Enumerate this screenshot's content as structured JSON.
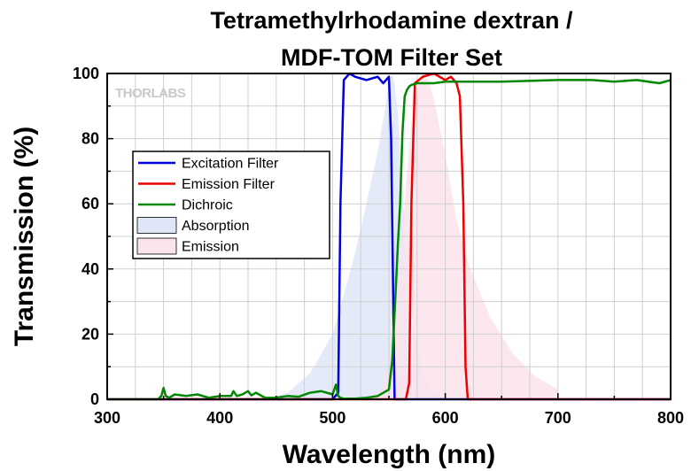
{
  "chart_data": {
    "type": "line",
    "title": [
      "Tetramethylrhodamine dextran /",
      "MDF-TOM Filter Set"
    ],
    "xlabel": "Wavelength (nm)",
    "ylabel": "Transmission (%)",
    "xlim": [
      300,
      800
    ],
    "ylim": [
      0,
      100
    ],
    "xticks": [
      "300",
      "400",
      "500",
      "600",
      "700",
      "800"
    ],
    "yticks": [
      "0",
      "20",
      "40",
      "60",
      "80",
      "100"
    ],
    "grid": true,
    "legend_position": "upper-left",
    "logo_text": "THORLABS",
    "series": [
      {
        "name": "Excitation Filter",
        "kind": "line",
        "color": "#0000dd",
        "x": [
          300,
          500,
          505,
          507,
          510,
          515,
          520,
          530,
          540,
          545,
          550,
          552,
          555,
          560,
          800
        ],
        "y": [
          0,
          0,
          2,
          60,
          98,
          100,
          99,
          98,
          99,
          97,
          99,
          80,
          0,
          0,
          0
        ]
      },
      {
        "name": "Emission Filter",
        "kind": "line",
        "color": "#ee0000",
        "x": [
          300,
          565,
          568,
          570,
          573,
          580,
          590,
          600,
          605,
          610,
          613,
          616,
          618,
          620,
          800
        ],
        "y": [
          0,
          0,
          5,
          60,
          97,
          99,
          100,
          98,
          99,
          97,
          93,
          60,
          10,
          0,
          0
        ]
      },
      {
        "name": "Dichroic",
        "kind": "line",
        "color": "#008800",
        "x": [
          300,
          340,
          345,
          348,
          350,
          352,
          355,
          360,
          370,
          380,
          390,
          400,
          410,
          412,
          415,
          420,
          425,
          428,
          432,
          440,
          450,
          460,
          470,
          480,
          490,
          500,
          503,
          505,
          507,
          510,
          520,
          530,
          540,
          550,
          553,
          556,
          558,
          560,
          562,
          564,
          566,
          568,
          570,
          575,
          580,
          590,
          600,
          620,
          650,
          700,
          730,
          750,
          770,
          780,
          790,
          800
        ],
        "y": [
          0,
          0,
          0,
          1,
          3.5,
          1,
          0.5,
          1.5,
          1,
          1.5,
          0.5,
          1,
          1,
          2.5,
          1,
          1.5,
          2.5,
          1.2,
          2,
          0.5,
          0.5,
          1,
          0.8,
          2,
          2.5,
          1.5,
          4.5,
          1,
          0.5,
          0.2,
          0.2,
          0.5,
          1,
          3,
          12,
          33,
          48,
          60,
          82,
          93,
          95,
          96,
          96.5,
          97,
          97,
          97,
          97.5,
          97.5,
          97.5,
          98,
          98,
          97.5,
          98,
          97.5,
          97,
          98
        ]
      },
      {
        "name": "Absorption",
        "kind": "area",
        "color": "#dfe6f7",
        "x": [
          440,
          460,
          480,
          500,
          510,
          520,
          530,
          540,
          547,
          550,
          553,
          555,
          558,
          562,
          566,
          570,
          580,
          590,
          600
        ],
        "y": [
          0,
          2,
          8,
          20,
          32,
          45,
          60,
          76,
          90,
          97,
          100,
          97,
          88,
          65,
          42,
          25,
          8,
          2,
          0
        ]
      },
      {
        "name": "Emission",
        "kind": "area",
        "color": "#fbe3ec",
        "x": [
          540,
          550,
          560,
          565,
          570,
          575,
          580,
          585,
          590,
          600,
          610,
          620,
          640,
          660,
          680,
          700
        ],
        "y": [
          0,
          10,
          40,
          65,
          85,
          95,
          100,
          98,
          92,
          75,
          55,
          42,
          25,
          14,
          7,
          3
        ]
      }
    ]
  }
}
